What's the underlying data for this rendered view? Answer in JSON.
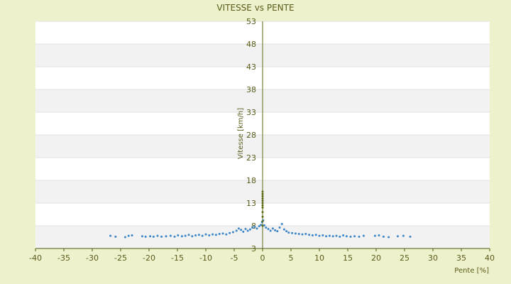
{
  "chart_data": {
    "type": "scatter",
    "title": "VITESSE vs PENTE",
    "xlabel": "Pente [%]",
    "ylabel": "Vitesse [km/h]",
    "xlim": [
      -40,
      40
    ],
    "ylim": [
      3,
      53
    ],
    "xticks": [
      -40,
      -35,
      -30,
      -25,
      -20,
      -15,
      -10,
      -5,
      0,
      5,
      10,
      15,
      20,
      25,
      30,
      35,
      40
    ],
    "yticks": [
      3,
      8,
      13,
      18,
      23,
      28,
      33,
      38,
      43,
      48,
      53
    ],
    "grid": true,
    "legend": "none",
    "colors": {
      "background": "#eef2cc",
      "plot_background": "#ffffff",
      "band": "#f2f2f2",
      "axis": "#4a5a10",
      "points": "#3d86c8",
      "zero_line": "#5a6a14"
    },
    "series": [
      {
        "color": "#3d86c8",
        "points": [
          [
            -26.8,
            5.8
          ],
          [
            -25.9,
            5.6
          ],
          [
            -24.2,
            5.5
          ],
          [
            -23.6,
            5.8
          ],
          [
            -23.0,
            5.9
          ],
          [
            -21.2,
            5.7
          ],
          [
            -20.6,
            5.6
          ],
          [
            -19.8,
            5.7
          ],
          [
            -19.2,
            5.6
          ],
          [
            -18.5,
            5.8
          ],
          [
            -17.8,
            5.6
          ],
          [
            -17.0,
            5.7
          ],
          [
            -16.2,
            5.8
          ],
          [
            -15.5,
            5.6
          ],
          [
            -14.9,
            5.9
          ],
          [
            -14.2,
            5.7
          ],
          [
            -13.6,
            5.8
          ],
          [
            -13.0,
            6.0
          ],
          [
            -12.4,
            5.7
          ],
          [
            -11.8,
            5.9
          ],
          [
            -11.2,
            6.0
          ],
          [
            -10.6,
            5.8
          ],
          [
            -10.0,
            6.1
          ],
          [
            -9.4,
            5.9
          ],
          [
            -8.8,
            6.1
          ],
          [
            -8.2,
            6.0
          ],
          [
            -7.6,
            6.2
          ],
          [
            -7.0,
            6.3
          ],
          [
            -6.4,
            6.1
          ],
          [
            -5.8,
            6.4
          ],
          [
            -5.2,
            6.6
          ],
          [
            -4.6,
            6.9
          ],
          [
            -4.2,
            7.4
          ],
          [
            -3.8,
            7.1
          ],
          [
            -3.4,
            6.7
          ],
          [
            -3.0,
            7.3
          ],
          [
            -2.6,
            6.9
          ],
          [
            -2.2,
            7.2
          ],
          [
            -1.8,
            7.6
          ],
          [
            -1.4,
            7.8
          ],
          [
            -1.0,
            7.4
          ],
          [
            -0.6,
            7.9
          ],
          [
            -0.3,
            8.2
          ],
          [
            -0.1,
            8.8
          ],
          [
            0.1,
            9.2
          ],
          [
            0.3,
            8.1
          ],
          [
            0.6,
            7.6
          ],
          [
            1.0,
            7.3
          ],
          [
            1.4,
            6.9
          ],
          [
            1.8,
            7.4
          ],
          [
            2.2,
            7.0
          ],
          [
            2.6,
            6.8
          ],
          [
            3.0,
            7.6
          ],
          [
            3.4,
            8.4
          ],
          [
            3.8,
            7.2
          ],
          [
            4.2,
            6.8
          ],
          [
            4.6,
            6.5
          ],
          [
            5.2,
            6.4
          ],
          [
            5.8,
            6.3
          ],
          [
            6.4,
            6.2
          ],
          [
            7.0,
            6.1
          ],
          [
            7.6,
            6.2
          ],
          [
            8.2,
            6.0
          ],
          [
            8.8,
            5.9
          ],
          [
            9.4,
            6.0
          ],
          [
            10.0,
            5.8
          ],
          [
            10.6,
            5.9
          ],
          [
            11.2,
            5.7
          ],
          [
            11.8,
            5.8
          ],
          [
            12.4,
            5.7
          ],
          [
            13.0,
            5.8
          ],
          [
            13.6,
            5.6
          ],
          [
            14.2,
            5.9
          ],
          [
            14.8,
            5.7
          ],
          [
            15.5,
            5.6
          ],
          [
            16.2,
            5.7
          ],
          [
            17.0,
            5.6
          ],
          [
            17.8,
            5.8
          ],
          [
            19.8,
            5.8
          ],
          [
            20.5,
            5.9
          ],
          [
            21.3,
            5.6
          ],
          [
            22.2,
            5.5
          ],
          [
            23.8,
            5.7
          ],
          [
            24.8,
            5.8
          ],
          [
            26.0,
            5.6
          ]
        ]
      },
      {
        "color": "#5a6a14",
        "points": [
          [
            0.0,
            8.0
          ],
          [
            0.0,
            9.0
          ],
          [
            0.0,
            10.0
          ],
          [
            0.0,
            11.0
          ],
          [
            0.0,
            12.0
          ],
          [
            0.0,
            12.5
          ],
          [
            0.0,
            13.0
          ],
          [
            0.0,
            13.5
          ],
          [
            0.0,
            14.0
          ],
          [
            0.0,
            14.5
          ],
          [
            0.0,
            15.0
          ],
          [
            0.0,
            15.5
          ]
        ]
      }
    ]
  }
}
